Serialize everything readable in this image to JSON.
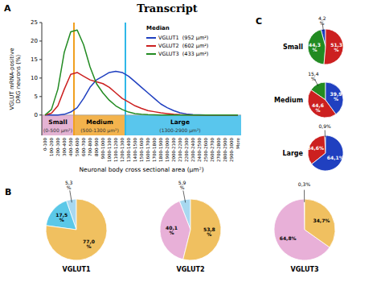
{
  "chart_data": [
    {
      "type": "line",
      "title": "Transcript",
      "categories": [
        "0-100",
        "100-200",
        "200-300",
        "300-400",
        "400-500",
        "500-600",
        "600-700",
        "700-800",
        "800-900",
        "900-1000",
        "1000-1100",
        "1100-1200",
        "1200-1300",
        "1300-1400",
        "1400-1500",
        "1500-1600",
        "1600-1700",
        "1700-1800",
        "1800-1900",
        "1900-2000",
        "2000-2100",
        "2100-2200",
        "2200-2300",
        "2300-2400",
        "2400-2500",
        "2500-2600",
        "2600-2700",
        "2700-2800",
        "2800-2900",
        "2900-3000",
        "More"
      ],
      "series": [
        {
          "name": "VGLUT1  (952 μm²)",
          "color": "#2040c0",
          "values": [
            0,
            0,
            0,
            0.2,
            0.8,
            2.0,
            4.5,
            7.5,
            9.5,
            10.5,
            11.5,
            11.8,
            11.5,
            10.5,
            9.0,
            7.5,
            6.0,
            4.5,
            3.0,
            2.0,
            1.2,
            0.6,
            0.3,
            0.1,
            0.05,
            0.02,
            0.01,
            0.0,
            0.0,
            0.0,
            0.0
          ]
        },
        {
          "name": "VGLUT2  (602 μm²)",
          "color": "#cc2020",
          "values": [
            0,
            0.5,
            2.5,
            7.0,
            11.0,
            11.5,
            10.5,
            9.5,
            9.0,
            8.5,
            7.5,
            6.0,
            4.5,
            3.5,
            2.5,
            1.8,
            1.2,
            0.9,
            0.6,
            0.4,
            0.2,
            0.1,
            0.05,
            0.02,
            0.01,
            0.0,
            0.0,
            0.0,
            0.0,
            0.0,
            0.0
          ]
        },
        {
          "name": "VGLUT3  (433 μm²)",
          "color": "#228b22",
          "values": [
            0,
            1.5,
            7.0,
            17.0,
            22.5,
            23.0,
            19.0,
            13.0,
            8.5,
            6.0,
            4.0,
            2.5,
            1.5,
            0.8,
            0.4,
            0.2,
            0.1,
            0.05,
            0.02,
            0.01,
            0.0,
            0.0,
            0.0,
            0.0,
            0.0,
            0.0,
            0.0,
            0.0,
            0.0,
            0.0,
            0.0
          ]
        }
      ],
      "xlabel": "Neuronal body cross sectional area (μm²)",
      "ylabel": "VGLUT mRNA-positive\nDRG neurons (%)",
      "ylim": [
        -5.5,
        25
      ],
      "yticks": [
        0,
        5,
        10,
        15,
        20,
        25
      ],
      "grid": false,
      "legend": "top-right",
      "annotations": [
        {
          "text": "A"
        },
        {
          "text": "Median"
        },
        {
          "text": "Small",
          "color": "#dda0c8"
        },
        {
          "text": "(0-500 μm²)"
        },
        {
          "text": "Medium",
          "color": "#f0a020"
        },
        {
          "text": "(500-1300 μm²)"
        },
        {
          "text": "Large",
          "color": "#30b8e8"
        },
        {
          "text": "(1300-2900 μm²)"
        }
      ]
    },
    {
      "type": "pie",
      "title": "Small",
      "values": [
        4.2,
        44.3,
        51.3
      ],
      "value_labels": [
        "4,2\n%",
        "44,3\n%",
        "51,3\n%"
      ],
      "colors": [
        "#2040c0",
        "#228b22",
        "#cc2020"
      ],
      "data_labels": true,
      "annotations": [
        {
          "text": "C"
        }
      ]
    },
    {
      "type": "pie",
      "title": "Medium",
      "values": [
        15.4,
        44.6,
        39.9
      ],
      "value_labels": [
        "15,4\n%",
        "44,6\n%",
        "39,9\n%"
      ],
      "colors": [
        "#228b22",
        "#cc2020",
        "#2040c0"
      ],
      "data_labels": true
    },
    {
      "type": "pie",
      "title": "Large",
      "values": [
        0.9,
        34.6,
        64.1
      ],
      "value_labels": [
        "0,9%",
        "34,6%",
        "64,1%"
      ],
      "colors": [
        "#111111",
        "#cc2020",
        "#2040c0"
      ],
      "data_labels": true
    },
    {
      "type": "pie",
      "title": "VGLUT1",
      "values": [
        5.3,
        17.5,
        77.0
      ],
      "value_labels": [
        "5,3\n%",
        "17,5\n%",
        "77,0\n%"
      ],
      "colors": [
        "#a8d8f0",
        "#5bc8e8",
        "#f0c060"
      ],
      "data_labels": true,
      "annotations": [
        {
          "text": "B"
        }
      ]
    },
    {
      "type": "pie",
      "title": "VGLUT2",
      "values": [
        5.9,
        40.1,
        53.8
      ],
      "value_labels": [
        "5,9\n%",
        "40,1\n%",
        "53,8\n%"
      ],
      "colors": [
        "#a8d8f0",
        "#e8b0d8",
        "#f0c060"
      ],
      "data_labels": true
    },
    {
      "type": "pie",
      "title": "VGLUT3",
      "values": [
        0.3,
        64.8,
        34.7
      ],
      "value_labels": [
        "0,3%",
        "64,8%",
        "34,7%"
      ],
      "colors": [
        "#f0c060",
        "#e8b0d8",
        "#f0c060"
      ],
      "data_labels": true
    }
  ]
}
